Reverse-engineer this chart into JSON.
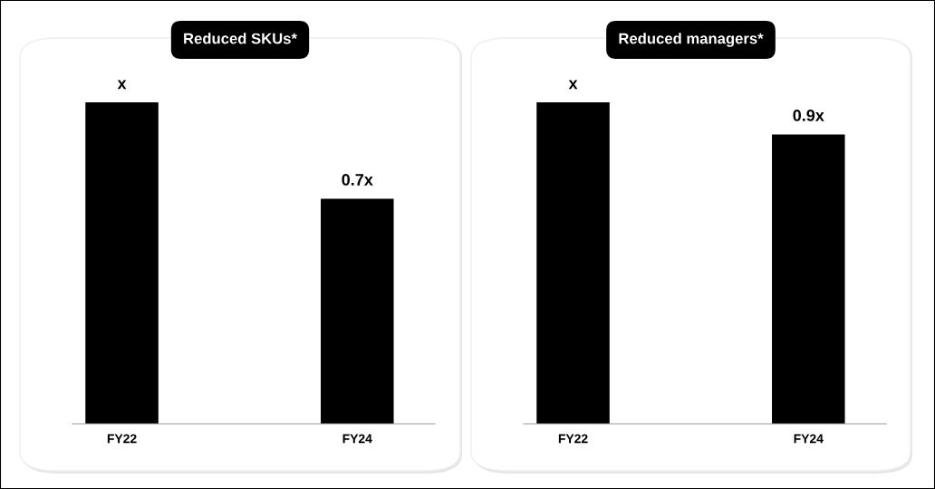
{
  "chart_data": [
    {
      "type": "bar",
      "title": "Reduced SKUs*",
      "categories": [
        "FY22",
        "FY24"
      ],
      "tick_labels": "x",
      "values": [
        1,
        0.7
      ],
      "value_labels": [
        "x",
        "0.7x"
      ],
      "color": "#000000",
      "grid": false,
      "legend": false
    },
    {
      "type": "bar",
      "title": "Reduced managers*",
      "categories": [
        "FY22",
        "FY24"
      ],
      "tick_labels": "x",
      "values": [
        1,
        0.9
      ],
      "value_labels": [
        "x",
        "0.9x"
      ],
      "color": "#000000",
      "grid": false,
      "legend": false
    }
  ]
}
